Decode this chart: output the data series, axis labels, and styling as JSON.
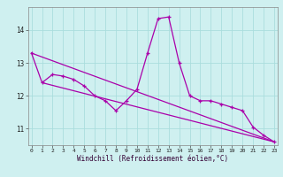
{
  "xlabel": "Windchill (Refroidissement éolien,°C)",
  "background_color": "#cff0f0",
  "grid_color": "#aadddd",
  "line_color": "#aa00aa",
  "hours": [
    0,
    1,
    2,
    3,
    4,
    5,
    6,
    7,
    8,
    9,
    10,
    11,
    12,
    13,
    14,
    15,
    16,
    17,
    18,
    19,
    20,
    21,
    22,
    23
  ],
  "wc_values": [
    13.3,
    12.4,
    12.65,
    12.6,
    12.5,
    12.3,
    12.0,
    11.85,
    11.55,
    11.85,
    12.2,
    13.3,
    14.35,
    14.4,
    13.0,
    12.0,
    11.85,
    11.85,
    11.75,
    11.65,
    11.55,
    11.05,
    10.8,
    10.6
  ],
  "trend1_x": [
    0,
    23
  ],
  "trend1_y": [
    13.3,
    10.6
  ],
  "trend2_x": [
    1,
    23
  ],
  "trend2_y": [
    12.4,
    10.6
  ],
  "ylim": [
    10.5,
    14.7
  ],
  "xlim": [
    -0.3,
    23.3
  ],
  "yticks": [
    11,
    12,
    13,
    14
  ],
  "xticks": [
    0,
    1,
    2,
    3,
    4,
    5,
    6,
    7,
    8,
    9,
    10,
    11,
    12,
    13,
    14,
    15,
    16,
    17,
    18,
    19,
    20,
    21,
    22,
    23
  ]
}
